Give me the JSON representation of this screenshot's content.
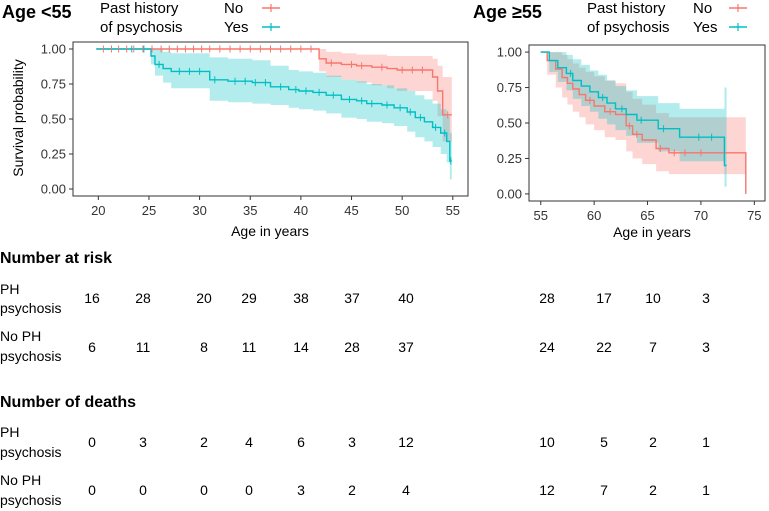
{
  "chart_data": [
    {
      "type": "line",
      "subtype": "kaplan-meier",
      "title": "Age <55",
      "xlabel": "Age in years",
      "ylabel": "Survival probability",
      "xlim": [
        17.5,
        56.5
      ],
      "ylim": [
        -0.05,
        1.05
      ],
      "xticks": [
        "20",
        "25",
        "30",
        "35",
        "40",
        "45",
        "50",
        "55"
      ],
      "yticks": [
        "0.00",
        "0.25",
        "0.50",
        "0.75",
        "1.00"
      ],
      "legend": {
        "title_line1": "Past history",
        "title_line2": "of psychosis",
        "position": "top"
      },
      "series": [
        {
          "name": "No",
          "color": "#F8766D",
          "x": [
            19.8,
            41.8,
            42.5,
            44.0,
            45.5,
            47.0,
            48.5,
            49.5,
            53.0,
            53.5,
            54.0,
            54.9
          ],
          "y": [
            1.0,
            0.93,
            0.9,
            0.89,
            0.88,
            0.87,
            0.86,
            0.85,
            0.8,
            0.7,
            0.53,
            0.53
          ],
          "lower": [
            1.0,
            0.84,
            0.8,
            0.78,
            0.76,
            0.74,
            0.72,
            0.7,
            0.63,
            0.52,
            0.34,
            0.34
          ],
          "upper": [
            1.0,
            1.0,
            0.98,
            0.97,
            0.96,
            0.96,
            0.95,
            0.95,
            0.93,
            0.88,
            0.8,
            0.8
          ],
          "censor_x": [
            20.5,
            21.3,
            22.0,
            22.8,
            23.5,
            24.4,
            25.3,
            26.2,
            27.0,
            27.8,
            28.6,
            29.4,
            30.2,
            31.0,
            32.0,
            33.0,
            34.0,
            35.0,
            36.0,
            37.0,
            38.0,
            39.0,
            40.0,
            41.0,
            43.0,
            45.0,
            46.0,
            48.0,
            50.0,
            51.0,
            52.0,
            54.5
          ]
        },
        {
          "name": "Yes",
          "color": "#00BFC4",
          "x": [
            19.8,
            25.2,
            25.6,
            26.4,
            27.2,
            31.0,
            32.8,
            35.2,
            37.0,
            38.8,
            39.8,
            41.2,
            42.5,
            44.0,
            45.5,
            46.5,
            48.0,
            49.2,
            50.5,
            51.3,
            52.2,
            53.0,
            53.8,
            54.4,
            54.7,
            54.9
          ],
          "y": [
            1.0,
            0.95,
            0.89,
            0.86,
            0.84,
            0.78,
            0.77,
            0.76,
            0.73,
            0.71,
            0.7,
            0.69,
            0.67,
            0.64,
            0.63,
            0.61,
            0.6,
            0.58,
            0.55,
            0.51,
            0.48,
            0.44,
            0.4,
            0.34,
            0.2,
            0.2
          ],
          "lower": [
            1.0,
            0.89,
            0.81,
            0.76,
            0.72,
            0.63,
            0.62,
            0.61,
            0.6,
            0.58,
            0.57,
            0.56,
            0.54,
            0.51,
            0.5,
            0.48,
            0.47,
            0.45,
            0.41,
            0.37,
            0.34,
            0.3,
            0.25,
            0.19,
            0.07,
            0.07
          ],
          "upper": [
            1.0,
            1.0,
            1.0,
            0.98,
            0.97,
            0.94,
            0.93,
            0.92,
            0.88,
            0.85,
            0.84,
            0.83,
            0.81,
            0.78,
            0.77,
            0.75,
            0.74,
            0.72,
            0.7,
            0.67,
            0.64,
            0.61,
            0.57,
            0.52,
            0.4,
            0.4
          ],
          "censor_x": [
            23.3,
            24.5,
            26.0,
            28.0,
            29.0,
            30.0,
            31.5,
            33.5,
            34.5,
            35.5,
            36.5,
            38.0,
            39.5,
            40.5,
            41.8,
            43.2,
            44.8,
            46.0,
            47.0,
            48.5,
            49.8,
            50.8,
            51.8,
            53.3,
            54.2,
            54.8
          ]
        }
      ]
    },
    {
      "type": "line",
      "subtype": "kaplan-meier",
      "title": "Age ≥55",
      "xlabel": "Age in years",
      "ylabel": "",
      "xlim": [
        53.9,
        76.0
      ],
      "ylim": [
        -0.05,
        1.05
      ],
      "xticks": [
        "55",
        "60",
        "65",
        "70",
        "75"
      ],
      "yticks": [
        "0.00",
        "0.25",
        "0.50",
        "0.75",
        "1.00"
      ],
      "legend": {
        "title_line1": "Past history",
        "title_line2": "of psychosis",
        "position": "top"
      },
      "series": [
        {
          "name": "No",
          "color": "#F8766D",
          "x": [
            55.0,
            55.6,
            56.4,
            57.0,
            57.5,
            58.0,
            58.6,
            59.2,
            60.0,
            61.0,
            62.0,
            63.0,
            63.6,
            64.5,
            65.8,
            67.0,
            74.0,
            74.2
          ],
          "y": [
            1.0,
            0.94,
            0.88,
            0.82,
            0.78,
            0.74,
            0.7,
            0.66,
            0.62,
            0.58,
            0.56,
            0.48,
            0.42,
            0.38,
            0.32,
            0.29,
            0.29,
            0.0
          ],
          "lower": [
            1.0,
            0.84,
            0.75,
            0.68,
            0.63,
            0.58,
            0.54,
            0.49,
            0.45,
            0.4,
            0.38,
            0.3,
            0.25,
            0.21,
            0.16,
            0.14,
            0.14,
            0.0
          ],
          "upper": [
            1.0,
            1.0,
            1.0,
            0.98,
            0.95,
            0.92,
            0.89,
            0.86,
            0.83,
            0.8,
            0.78,
            0.72,
            0.67,
            0.63,
            0.57,
            0.54,
            0.54,
            0.0
          ],
          "censor_x": [
            59.6,
            61.5,
            63.3,
            64.0,
            66.2,
            67.5,
            68.5,
            70.0
          ]
        },
        {
          "name": "Yes",
          "color": "#00BFC4",
          "x": [
            55.0,
            55.8,
            56.6,
            57.4,
            58.0,
            58.8,
            59.6,
            60.4,
            61.2,
            62.0,
            63.0,
            64.0,
            66.0,
            68.0,
            72.2,
            72.4
          ],
          "y": [
            1.0,
            0.94,
            0.89,
            0.85,
            0.8,
            0.76,
            0.72,
            0.68,
            0.64,
            0.6,
            0.56,
            0.52,
            0.46,
            0.4,
            0.2,
            0.2
          ],
          "lower": [
            1.0,
            0.86,
            0.79,
            0.73,
            0.67,
            0.62,
            0.58,
            0.53,
            0.49,
            0.45,
            0.41,
            0.36,
            0.3,
            0.23,
            0.05,
            0.05
          ],
          "upper": [
            1.0,
            1.0,
            1.0,
            0.98,
            0.95,
            0.91,
            0.87,
            0.84,
            0.8,
            0.76,
            0.73,
            0.69,
            0.64,
            0.6,
            0.75,
            0.75
          ],
          "censor_x": [
            57.8,
            60.8,
            62.6,
            64.4,
            66.5,
            69.8,
            71.0
          ]
        }
      ]
    }
  ],
  "tables": {
    "at_risk": {
      "title": "Number at risk",
      "rows": [
        {
          "label_line1": "PH",
          "label_line2": "psychosis",
          "left": [
            "16",
            "28",
            "20",
            "29",
            "38",
            "37",
            "40"
          ],
          "right": [
            "28",
            "17",
            "10",
            "3"
          ]
        },
        {
          "label_line1": "No PH",
          "label_line2": "psychosis",
          "left": [
            "6",
            "11",
            "8",
            "11",
            "14",
            "28",
            "37"
          ],
          "right": [
            "24",
            "22",
            "7",
            "3"
          ]
        }
      ]
    },
    "deaths": {
      "title": "Number of deaths",
      "rows": [
        {
          "label_line1": "PH",
          "label_line2": "psychosis",
          "left": [
            "0",
            "3",
            "2",
            "4",
            "6",
            "3",
            "12"
          ],
          "right": [
            "10",
            "5",
            "2",
            "1"
          ]
        },
        {
          "label_line1": "No PH",
          "label_line2": "psychosis",
          "left": [
            "0",
            "0",
            "0",
            "0",
            "3",
            "2",
            "4"
          ],
          "right": [
            "12",
            "7",
            "2",
            "1"
          ]
        }
      ]
    }
  }
}
